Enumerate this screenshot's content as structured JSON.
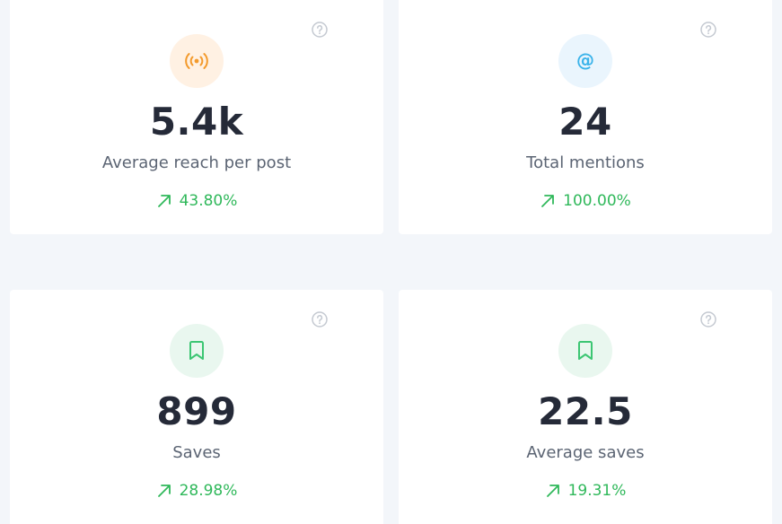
{
  "cards": [
    {
      "value": "5.4k",
      "label": "Average reach per post",
      "change": "43.80%",
      "icon": "broadcast-icon",
      "trend": "up"
    },
    {
      "value": "24",
      "label": "Total mentions",
      "change": "100.00%",
      "icon": "at-sign-icon",
      "icon_text": "@",
      "trend": "up"
    },
    {
      "value": "899",
      "label": "Saves",
      "change": "28.98%",
      "icon": "bookmark-icon",
      "trend": "up"
    },
    {
      "value": "22.5",
      "label": "Average saves",
      "change": "19.31%",
      "icon": "bookmark-icon",
      "trend": "up"
    }
  ],
  "colors": {
    "background": "#f3f6fa",
    "card": "#ffffff",
    "value_text": "#252a38",
    "label_text": "#5b6473",
    "positive": "#2fb85a",
    "broadcast_icon": "#f39a2c",
    "at_icon": "#3ab3ea",
    "bookmark_icon": "#3cc673",
    "help_icon": "#c4c9d1"
  }
}
